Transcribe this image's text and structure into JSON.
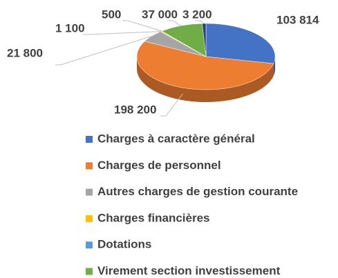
{
  "chart_data": {
    "type": "pie3d",
    "categories": [
      "Charges à caractère général",
      "Charges de personnel",
      "Autres charges de gestion courante",
      "Charges financières",
      "Dotations",
      "Virement section investissement",
      null
    ],
    "values": [
      103814,
      198200,
      21800,
      1100,
      500,
      37000,
      3200
    ],
    "value_labels": [
      "103 814",
      "198 200",
      "21 800",
      "1 100",
      "500",
      "37 000",
      "3 200"
    ],
    "colors": [
      "#4472c4",
      "#ed7d31",
      "#a5a5a5",
      "#ffc000",
      "#5b9bd5",
      "#70ad47",
      "#264478"
    ],
    "legend": "bottom"
  }
}
